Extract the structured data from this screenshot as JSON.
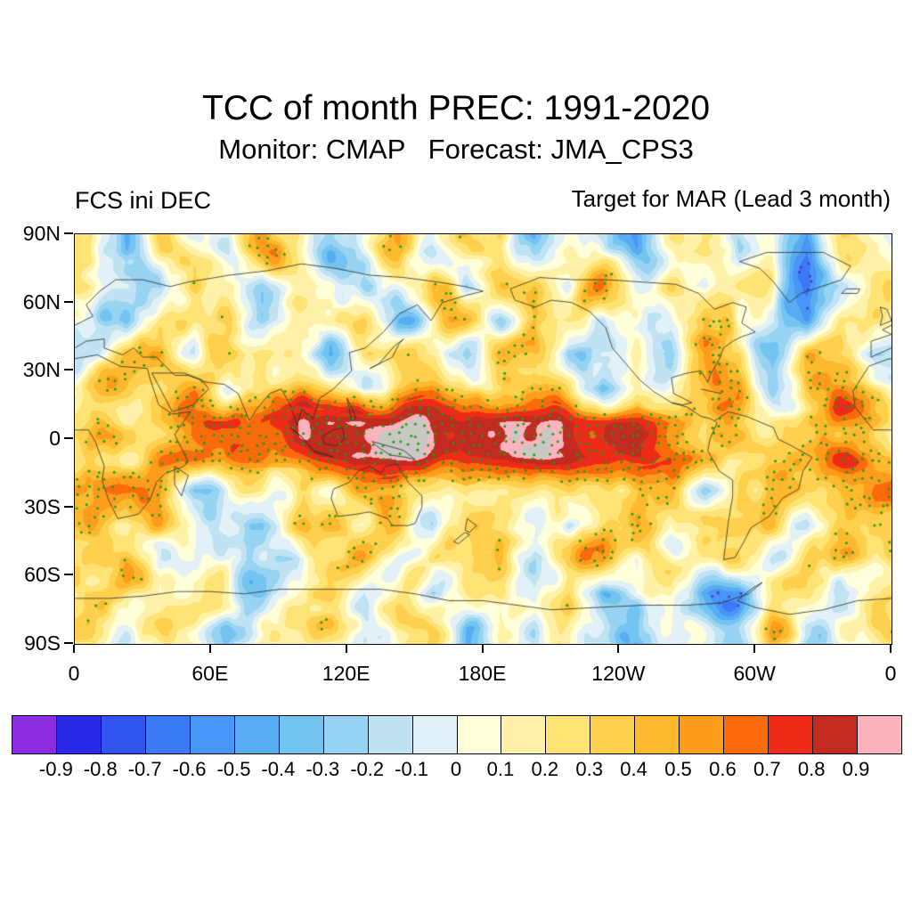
{
  "header": {
    "title": "TCC of month PREC: 1991-2020",
    "subtitle": "Monitor: CMAP   Forecast: JMA_CPS3",
    "left_label": "FCS ini DEC",
    "right_label": "Target for MAR (Lead 3 month)"
  },
  "chart_data": {
    "type": "heatmap",
    "title": "TCC of month PREC: 1991-2020",
    "subtitle": "Monitor: CMAP   Forecast: JMA_CPS3",
    "panel_labels": {
      "left": "FCS ini DEC",
      "right": "Target for MAR (Lead 3 month)"
    },
    "projection": "equirectangular world map, longitude 0 eastward through 180E to 0, latitude 90N to 90S, coastlines overlaid",
    "x_tick_labels": [
      "0",
      "60E",
      "120E",
      "180E",
      "120W",
      "60W",
      "0"
    ],
    "y_tick_labels": [
      "90N",
      "60N",
      "30N",
      "0",
      "30S",
      "60S",
      "90S"
    ],
    "value_range": [
      -1,
      1
    ],
    "colorbar": {
      "position": "bottom",
      "bin_edges": [
        -0.9,
        -0.8,
        -0.7,
        -0.6,
        -0.5,
        -0.4,
        -0.3,
        -0.2,
        -0.1,
        0,
        0.1,
        0.2,
        0.3,
        0.4,
        0.5,
        0.6,
        0.7,
        0.8,
        0.9
      ],
      "tick_labels": [
        "-0.9",
        "-0.8",
        "-0.7",
        "-0.6",
        "-0.5",
        "-0.4",
        "-0.3",
        "-0.2",
        "-0.1",
        "0",
        "0.1",
        "0.2",
        "0.3",
        "0.4",
        "0.5",
        "0.6",
        "0.7",
        "0.8",
        "0.9"
      ],
      "colors": [
        "#8B2BE2",
        "#2929E8",
        "#2F55EE",
        "#3A7BF5",
        "#4896F8",
        "#57ACF2",
        "#74C4F2",
        "#97D3F2",
        "#BFE3F2",
        "#E2F1F8",
        "#FFFFD9",
        "#FFF2A8",
        "#FFE375",
        "#FFD04D",
        "#FFB92E",
        "#FF9C1C",
        "#FB6B0B",
        "#ED2B19",
        "#C12B20",
        "#FFB3BE"
      ]
    },
    "stippling": {
      "green_dots": "grid points with significant positive TCC (approx. TCC > 0.38)",
      "green_dot_color": "#18A018",
      "dark_dots": "grid points with significant negative TCC (approx. TCC < -0.52)",
      "dark_dot_color": "#5B2DB8"
    },
    "grid": {
      "description": "Estimated TCC field on a 15-degree grid, rows from north (82.5N) to south (82.5S), columns eastward from 7.5E",
      "lon_step_deg": 15,
      "lat_step_deg": 15,
      "lon_centers_start": 7.5,
      "lat_centers_start": 82.5,
      "rows_north_to_south": [
        [
          0.15,
          -0.2,
          0.25,
          0.1,
          -0.25,
          0.3,
          0.15,
          -0.2,
          0.1,
          0.3,
          -0.3,
          0.2,
          0.35,
          -0.15,
          0.25,
          0.1,
          -0.3,
          0.2,
          0.4,
          -0.2,
          0.25,
          -0.35,
          0.15,
          0.1
        ],
        [
          0.3,
          0.1,
          -0.25,
          0.35,
          0.2,
          -0.2,
          0.3,
          0.45,
          -0.1,
          0.2,
          0.4,
          -0.3,
          0.2,
          0.3,
          -0.2,
          0.4,
          0.1,
          0.3,
          -0.3,
          0.2,
          0.4,
          -0.45,
          -0.2,
          0.3
        ],
        [
          0.2,
          -0.25,
          0.3,
          0.1,
          0.4,
          -0.2,
          0.25,
          0.3,
          0.4,
          -0.3,
          0.1,
          0.3,
          -0.2,
          0.4,
          0.2,
          -0.3,
          0.3,
          0.1,
          0.4,
          -0.2,
          0.2,
          -0.3,
          0.35,
          0.2
        ],
        [
          -0.2,
          0.3,
          0.4,
          -0.1,
          0.3,
          0.45,
          0.2,
          -0.3,
          0.3,
          0.4,
          0.1,
          -0.2,
          0.4,
          0.3,
          -0.3,
          0.2,
          0.4,
          -0.2,
          0.3,
          0.1,
          -0.35,
          0.3,
          0.2,
          -0.2
        ],
        [
          0.3,
          0.4,
          0.2,
          0.35,
          -0.2,
          0.3,
          0.5,
          0.3,
          -0.2,
          0.4,
          0.55,
          0.3,
          0.2,
          0.5,
          0.3,
          -0.25,
          0.4,
          0.2,
          0.3,
          0.45,
          -0.2,
          0.3,
          0.4,
          0.3
        ],
        [
          0.4,
          0.35,
          0.45,
          0.5,
          0.55,
          0.6,
          0.7,
          0.78,
          0.85,
          0.87,
          0.88,
          0.89,
          0.9,
          0.9,
          0.88,
          0.85,
          0.8,
          0.68,
          0.5,
          0.4,
          0.45,
          0.4,
          0.4,
          0.35
        ],
        [
          0.35,
          0.3,
          0.45,
          0.5,
          0.6,
          0.65,
          0.75,
          0.82,
          0.88,
          0.9,
          0.9,
          0.91,
          0.91,
          0.9,
          0.88,
          0.85,
          0.78,
          0.6,
          0.45,
          0.4,
          0.4,
          0.45,
          0.4,
          0.3
        ],
        [
          0.2,
          0.4,
          0.3,
          -0.2,
          0.35,
          0.5,
          0.3,
          0.4,
          0.5,
          0.35,
          0.4,
          0.55,
          0.4,
          0.3,
          0.5,
          0.4,
          0.2,
          0.35,
          -0.2,
          0.3,
          0.4,
          0.2,
          0.3,
          0.35
        ],
        [
          0.3,
          -0.2,
          0.35,
          0.2,
          0.3,
          -0.25,
          0.4,
          0.3,
          0.2,
          0.4,
          -0.2,
          0.3,
          0.4,
          0.2,
          -0.3,
          0.3,
          0.4,
          -0.2,
          0.3,
          0.2,
          0.35,
          -0.25,
          0.2,
          0.3
        ],
        [
          0.2,
          0.3,
          -0.2,
          0.2,
          0.3,
          0.1,
          -0.25,
          0.2,
          0.3,
          -0.2,
          0.2,
          0.1,
          0.3,
          -0.2,
          0.2,
          0.3,
          -0.25,
          0.1,
          0.2,
          0.3,
          -0.2,
          0.2,
          0.1,
          0.2
        ],
        [
          0.1,
          0.2,
          -0.2,
          0.1,
          0.2,
          -0.25,
          0.1,
          0.2,
          -0.2,
          0.1,
          -0.3,
          0.2,
          0.1,
          -0.2,
          0.25,
          -0.35,
          0.1,
          0.2,
          -0.3,
          -0.45,
          0.1,
          0.2,
          -0.2,
          0.1
        ],
        [
          0.1,
          -0.2,
          0.2,
          0.1,
          -0.25,
          0.2,
          0.1,
          0.2,
          -0.2,
          0.1,
          0.2,
          -0.3,
          0.1,
          -0.2,
          0.2,
          0.1,
          -0.35,
          0.2,
          0.1,
          -0.2,
          0.2,
          -0.25,
          0.1,
          0.15
        ]
      ]
    },
    "highlights": [
      "Strong positive TCC band (0.8 to >0.9, dark red with pale core) along the equatorial Pacific (ENSO region, ~120E-280E, 10S-10N)",
      "Mostly weak-to-moderate positive TCC (0.1-0.5, yellow/orange) over the rest of the globe",
      "Scattered negative patches (light to medium blue, -0.2 to -0.6) in mid and high latitudes",
      "Green stipple dots mark significant positive correlation points"
    ]
  }
}
